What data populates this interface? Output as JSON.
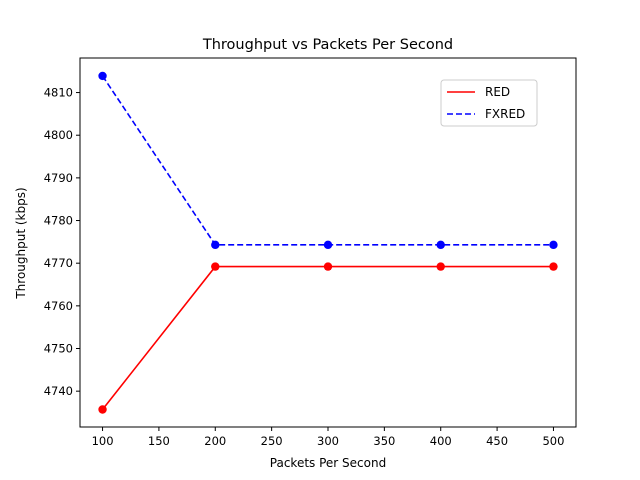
{
  "chart_data": {
    "type": "line",
    "title": "Throughput vs Packets Per Second",
    "xlabel": "Packets Per Second",
    "ylabel": "Throughput (kbps)",
    "x": [
      100,
      200,
      300,
      400,
      500
    ],
    "xlim": [
      80,
      520
    ],
    "ylim": [
      4731.6,
      4818.1
    ],
    "xticks": [
      100,
      150,
      200,
      250,
      300,
      350,
      400,
      450,
      500
    ],
    "yticks": [
      4740,
      4750,
      4760,
      4770,
      4780,
      4790,
      4800,
      4810
    ],
    "grid": false,
    "legend_position": "top-right",
    "series": [
      {
        "name": "RED",
        "color": "#ff0000",
        "line_style": "solid",
        "marker": "circle",
        "values": [
          4735.7,
          4769.2,
          4769.2,
          4769.2,
          4769.2
        ]
      },
      {
        "name": "FXRED",
        "color": "#0000ff",
        "line_style": "dashed",
        "marker": "circle",
        "values": [
          4813.9,
          4774.3,
          4774.3,
          4774.3,
          4774.3
        ]
      }
    ]
  }
}
